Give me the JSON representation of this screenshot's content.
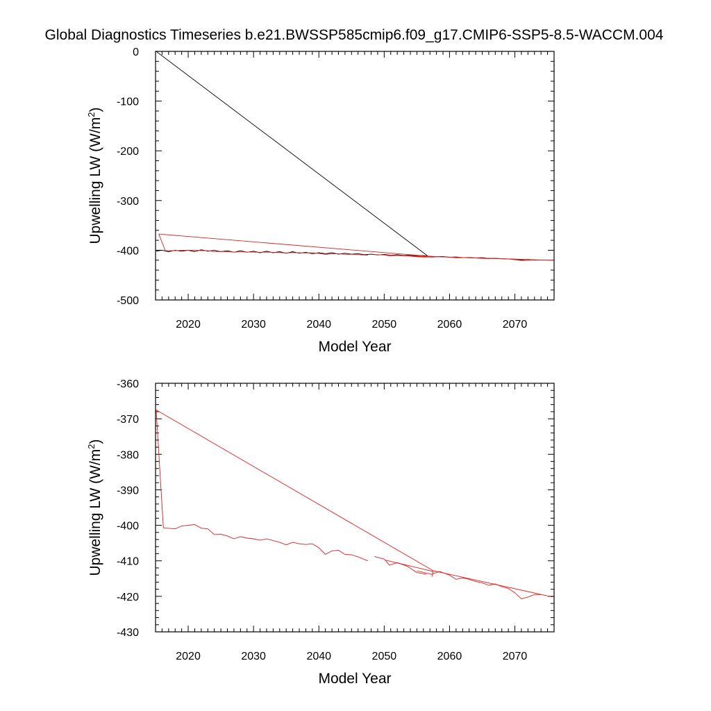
{
  "title": "Global Diagnostics Timeseries b.e21.BWSSP585cmip6.f09_g17.CMIP6-SSP5-8.5-WACCM.004",
  "chart_data": [
    {
      "type": "line",
      "xlabel": "Model Year",
      "ylabel": "Upwelling LW (W/m",
      "ylabel_sup": "2",
      "ylabel_close": ")",
      "xlim": [
        2015,
        2076
      ],
      "ylim": [
        -500,
        0
      ],
      "xticks": [
        2020,
        2030,
        2040,
        2050,
        2060,
        2070
      ],
      "yticks": [
        0,
        -100,
        -200,
        -300,
        -400,
        -500
      ],
      "xtick_labels": [
        "2020",
        "2030",
        "2040",
        "2050",
        "2060",
        "2070"
      ],
      "ytick_labels": [
        "0",
        "-100",
        "-200",
        "-300",
        "-400",
        "-500"
      ],
      "x_minor": 1,
      "y_minor": 20,
      "series": [
        {
          "color": "#000000",
          "points": [
            [
              2015.1,
              -402
            ],
            [
              2016,
              -400
            ],
            [
              2017,
              -403
            ],
            [
              2018,
              -400
            ],
            [
              2019,
              -402
            ],
            [
              2020,
              -400
            ],
            [
              2021,
              -403
            ],
            [
              2022,
              -399
            ],
            [
              2023,
              -402
            ],
            [
              2024,
              -400
            ],
            [
              2025,
              -403
            ],
            [
              2026,
              -401
            ],
            [
              2027,
              -404
            ],
            [
              2028,
              -401
            ],
            [
              2029,
              -404
            ],
            [
              2030,
              -402
            ],
            [
              2031,
              -405
            ],
            [
              2032,
              -402
            ],
            [
              2033,
              -405
            ],
            [
              2034,
              -403
            ],
            [
              2035,
              -406
            ],
            [
              2036,
              -403
            ],
            [
              2037,
              -406
            ],
            [
              2038,
              -404
            ],
            [
              2039,
              -407
            ],
            [
              2040,
              -405
            ],
            [
              2041,
              -407
            ],
            [
              2042,
              -405
            ],
            [
              2043,
              -408
            ],
            [
              2044,
              -406
            ],
            [
              2045,
              -408
            ],
            [
              2046,
              -407
            ],
            [
              2047,
              -409
            ],
            [
              2048,
              -408
            ],
            [
              2049,
              -409.5
            ],
            [
              2050,
              -408.5
            ],
            [
              2051,
              -410
            ],
            [
              2052,
              -409
            ],
            [
              2053,
              -410.5
            ],
            [
              2054,
              -410
            ],
            [
              2055,
              -411
            ],
            [
              2056,
              -410.5
            ],
            [
              2056.7,
              -412
            ],
            [
              2015.1,
              0
            ]
          ]
        },
        {
          "color": "#000000",
          "points": [
            [
              2056.7,
              -412
            ],
            [
              2058,
              -413
            ],
            [
              2059,
              -412.5
            ],
            [
              2060,
              -414
            ],
            [
              2061,
              -413.5
            ],
            [
              2062,
              -415
            ],
            [
              2063,
              -414.5
            ],
            [
              2064,
              -415.5
            ],
            [
              2065,
              -415
            ],
            [
              2066,
              -416.5
            ],
            [
              2067,
              -416
            ],
            [
              2068,
              -417
            ],
            [
              2069,
              -417.5
            ],
            [
              2070,
              -418
            ],
            [
              2071,
              -419.5
            ],
            [
              2072,
              -418.5
            ],
            [
              2073,
              -420
            ],
            [
              2074,
              -419.5
            ],
            [
              2075.5,
              -420
            ]
          ]
        },
        {
          "color": "#e11d1d",
          "points": [
            [
              2015.5,
              -367.5
            ],
            [
              2016.5,
              -400.8
            ],
            [
              2018,
              -401
            ],
            [
              2019,
              -400.2
            ],
            [
              2021,
              -399.8
            ],
            [
              2022,
              -400.8
            ],
            [
              2023,
              -401
            ],
            [
              2024,
              -402.6
            ],
            [
              2025,
              -402.5
            ],
            [
              2026,
              -403
            ],
            [
              2027,
              -403.8
            ],
            [
              2028,
              -403.2
            ],
            [
              2029,
              -403.6
            ],
            [
              2030,
              -403.8
            ],
            [
              2031,
              -404.2
            ],
            [
              2032,
              -403.8
            ],
            [
              2033,
              -404.3
            ],
            [
              2034,
              -404.8
            ],
            [
              2035,
              -405.5
            ],
            [
              2036,
              -404.8
            ],
            [
              2037,
              -405.2
            ],
            [
              2038,
              -405.4
            ],
            [
              2039,
              -405.2
            ],
            [
              2040,
              -406.3
            ],
            [
              2041,
              -408.2
            ],
            [
              2042,
              -407.2
            ],
            [
              2043,
              -407
            ],
            [
              2044,
              -408.2
            ],
            [
              2045,
              -408.3
            ],
            [
              2046,
              -408.9
            ],
            [
              2047.5,
              -410
            ]
          ]
        },
        {
          "color": "#e11d1d",
          "points": [
            [
              2048.5,
              -408.8
            ],
            [
              2050,
              -409.5
            ],
            [
              2050.8,
              -411.2
            ],
            [
              2052,
              -410.5
            ],
            [
              2053.5,
              -411.5
            ],
            [
              2055,
              -413.3
            ],
            [
              2056.5,
              -413.8
            ]
          ]
        },
        {
          "color": "#e11d1d",
          "points": [
            [
              2050.2,
              -409.8
            ],
            [
              2057.5,
              -413
            ],
            [
              2057.3,
              -414.5
            ]
          ]
        },
        {
          "color": "#e11d1d",
          "points": [
            [
              2055,
              -412.8
            ],
            [
              2057.2,
              -413.8
            ],
            [
              2058.5,
              -413
            ],
            [
              2060,
              -414
            ],
            [
              2061,
              -415.2
            ],
            [
              2062,
              -414.8
            ],
            [
              2063,
              -415.2
            ],
            [
              2064,
              -415.8
            ],
            [
              2065,
              -416.2
            ],
            [
              2066,
              -416.9
            ],
            [
              2067,
              -416.5
            ],
            [
              2068,
              -417.3
            ],
            [
              2069,
              -417.8
            ],
            [
              2070,
              -419
            ],
            [
              2071,
              -420.7
            ],
            [
              2072,
              -420.2
            ],
            [
              2073,
              -419.5
            ],
            [
              2074,
              -419.5
            ]
          ]
        },
        {
          "color": "#e11d1d",
          "points": [
            [
              2075.8,
              -420.2
            ],
            [
              2057.5,
              -412.8
            ],
            [
              2015.5,
              -367.5
            ]
          ]
        }
      ]
    },
    {
      "type": "line",
      "xlabel": "Model Year",
      "ylabel": "Upwelling LW (W/m",
      "ylabel_sup": "2",
      "ylabel_close": ")",
      "xlim": [
        2015,
        2076
      ],
      "ylim": [
        -430,
        -360
      ],
      "xticks": [
        2020,
        2030,
        2040,
        2050,
        2060,
        2070
      ],
      "yticks": [
        -360,
        -370,
        -380,
        -390,
        -400,
        -410,
        -420,
        -430
      ],
      "xtick_labels": [
        "2020",
        "2030",
        "2040",
        "2050",
        "2060",
        "2070"
      ],
      "ytick_labels": [
        "-360",
        "-370",
        "-380",
        "-390",
        "-400",
        "-410",
        "-420",
        "-430"
      ],
      "x_minor": 1,
      "y_minor": 2,
      "series": [
        {
          "color": "#e11d1d",
          "points": [
            [
              2015.1,
              -367.5
            ],
            [
              2016.2,
              -400.7
            ],
            [
              2018,
              -401
            ],
            [
              2019,
              -400.2
            ],
            [
              2021,
              -399.8
            ],
            [
              2022,
              -400.8
            ],
            [
              2023,
              -401
            ],
            [
              2024,
              -402.6
            ],
            [
              2025,
              -402.5
            ],
            [
              2026,
              -403
            ],
            [
              2027,
              -403.8
            ],
            [
              2028,
              -403.2
            ],
            [
              2029,
              -403.6
            ],
            [
              2030,
              -403.8
            ],
            [
              2031,
              -404.2
            ],
            [
              2032,
              -403.8
            ],
            [
              2033,
              -404.3
            ],
            [
              2034,
              -404.8
            ],
            [
              2035,
              -405.5
            ],
            [
              2036,
              -404.8
            ],
            [
              2037,
              -405.2
            ],
            [
              2038,
              -405.4
            ],
            [
              2039,
              -405.2
            ],
            [
              2040,
              -406.3
            ],
            [
              2041,
              -408.2
            ],
            [
              2042,
              -407.2
            ],
            [
              2043,
              -407
            ],
            [
              2044,
              -408.2
            ],
            [
              2045,
              -408.3
            ],
            [
              2046,
              -408.9
            ],
            [
              2047.5,
              -410
            ]
          ]
        },
        {
          "color": "#e11d1d",
          "points": [
            [
              2048.5,
              -408.8
            ],
            [
              2050,
              -409.5
            ],
            [
              2050.8,
              -411.2
            ],
            [
              2052,
              -410.5
            ],
            [
              2053.5,
              -411.5
            ],
            [
              2055,
              -413.3
            ],
            [
              2056.5,
              -413.8
            ]
          ]
        },
        {
          "color": "#e11d1d",
          "points": [
            [
              2050.2,
              -409.8
            ],
            [
              2057.5,
              -413
            ],
            [
              2057.3,
              -414.5
            ]
          ]
        },
        {
          "color": "#e11d1d",
          "points": [
            [
              2055,
              -412.8
            ],
            [
              2057.2,
              -413.8
            ],
            [
              2058.5,
              -413
            ],
            [
              2060,
              -414
            ],
            [
              2061,
              -415.2
            ],
            [
              2062,
              -414.8
            ],
            [
              2063,
              -415.2
            ],
            [
              2064,
              -415.8
            ],
            [
              2065,
              -416.2
            ],
            [
              2066,
              -416.9
            ],
            [
              2067,
              -416.5
            ],
            [
              2068,
              -417.3
            ],
            [
              2069,
              -417.8
            ],
            [
              2070,
              -419
            ],
            [
              2071,
              -420.7
            ],
            [
              2072,
              -420.2
            ],
            [
              2073,
              -419.5
            ],
            [
              2074,
              -419.5
            ]
          ]
        },
        {
          "color": "#e11d1d",
          "points": [
            [
              2075.8,
              -420.2
            ],
            [
              2057.5,
              -412.8
            ],
            [
              2015.1,
              -367.5
            ]
          ]
        }
      ]
    }
  ]
}
